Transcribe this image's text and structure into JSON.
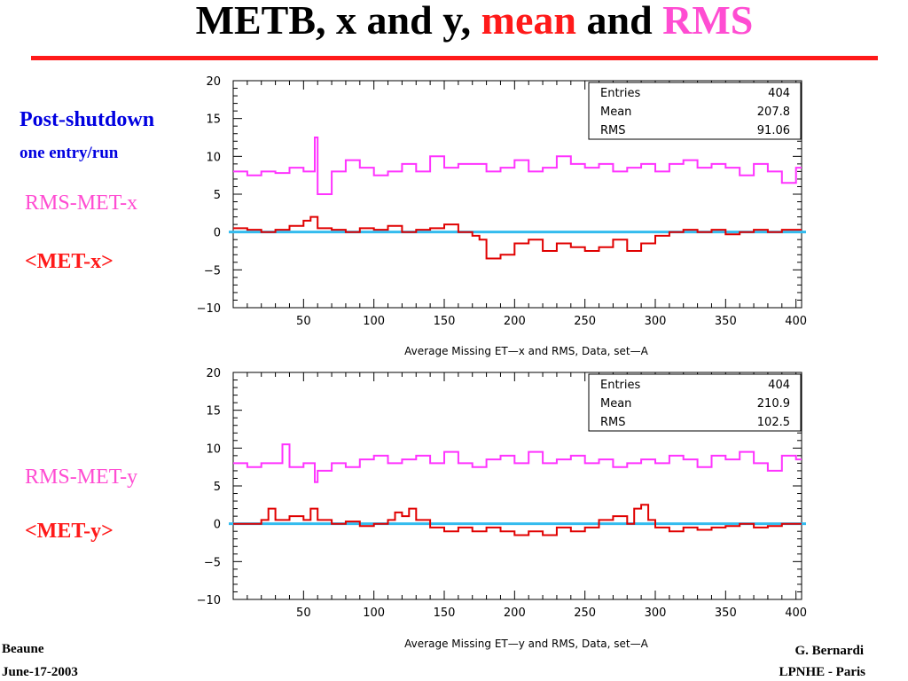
{
  "slide": {
    "title_part1": "METB, x and y,",
    "title_mean": "mean",
    "title_and": "and",
    "title_rms": "RMS",
    "post_shutdown": "Post-shutdown",
    "entry_per_run": "one entry/run",
    "rms_x_label": "RMS-MET-x",
    "mean_x_label": "<MET-x>",
    "rms_y_label": "RMS-MET-y",
    "mean_y_label": "<MET-y>",
    "footer_left_1": "Beaune",
    "footer_left_2": "June-17-2003",
    "footer_right_1": "G. Bernardi",
    "footer_right_2": "LPNHE - Paris"
  },
  "colors": {
    "title_red": "#ff1a1a",
    "title_pink": "#ff4dd2",
    "label_blue": "#0000e0",
    "rms_series": "#ff33ff",
    "mean_series": "#e00000",
    "zero_line": "#33bbee"
  },
  "chart_data": [
    {
      "type": "line",
      "xlabel": "Average Missing ET—x and RMS,  Data, set—A",
      "xlim": [
        0,
        404
      ],
      "ylim": [
        -10,
        20
      ],
      "xticks": [
        50,
        100,
        150,
        200,
        250,
        300,
        350,
        400
      ],
      "yticks": [
        -10,
        -5,
        0,
        5,
        10,
        15,
        20
      ],
      "xtick_labels": [
        "50",
        "100",
        "150",
        "200",
        "250",
        "300",
        "350",
        "400"
      ],
      "ytick_labels": [
        "−10",
        "−5",
        "0",
        "5",
        "10",
        "15",
        "20"
      ],
      "stats": [
        {
          "label": "Entries",
          "value": "404"
        },
        {
          "label": "Mean",
          "value": "207.8"
        },
        {
          "label": "RMS",
          "value": "91.06"
        }
      ],
      "series_rms": {
        "x": [
          0,
          10,
          20,
          30,
          40,
          50,
          58,
          60,
          70,
          80,
          90,
          100,
          110,
          120,
          130,
          140,
          150,
          160,
          170,
          180,
          190,
          200,
          210,
          220,
          230,
          240,
          250,
          260,
          270,
          280,
          290,
          300,
          310,
          320,
          330,
          340,
          350,
          360,
          370,
          380,
          390,
          400
        ],
        "y": [
          8.0,
          7.5,
          8.0,
          7.8,
          8.5,
          8.0,
          12.5,
          5.0,
          8.0,
          9.5,
          8.5,
          7.5,
          8.0,
          9.0,
          8.0,
          10.0,
          8.5,
          9.0,
          9.0,
          8.0,
          8.5,
          9.5,
          8.0,
          8.5,
          10.0,
          9.0,
          8.5,
          9.0,
          8.0,
          8.5,
          9.0,
          8.0,
          9.0,
          9.5,
          8.5,
          9.0,
          8.5,
          7.5,
          9.0,
          8.0,
          6.5,
          8.5
        ]
      },
      "series_mean": {
        "x": [
          0,
          10,
          20,
          30,
          40,
          50,
          55,
          60,
          70,
          80,
          90,
          100,
          110,
          120,
          130,
          140,
          150,
          160,
          170,
          175,
          180,
          190,
          200,
          210,
          220,
          230,
          240,
          250,
          260,
          270,
          280,
          290,
          300,
          310,
          320,
          330,
          340,
          350,
          360,
          370,
          380,
          390,
          400
        ],
        "y": [
          0.5,
          0.3,
          0.0,
          0.3,
          0.8,
          1.5,
          2.0,
          0.5,
          0.3,
          0.0,
          0.5,
          0.3,
          0.8,
          0.0,
          0.3,
          0.5,
          1.0,
          0.0,
          -0.5,
          -1.0,
          -3.5,
          -3.0,
          -1.5,
          -1.0,
          -2.5,
          -1.5,
          -2.0,
          -2.5,
          -2.0,
          -1.0,
          -2.5,
          -1.5,
          -0.5,
          0.0,
          0.3,
          0.0,
          0.3,
          -0.3,
          0.0,
          0.3,
          0.0,
          0.3,
          0.3
        ]
      },
      "zero_line": 0
    },
    {
      "type": "line",
      "xlabel": "Average Missing ET—y and RMS,  Data, set—A",
      "xlim": [
        0,
        404
      ],
      "ylim": [
        -10,
        20
      ],
      "xticks": [
        50,
        100,
        150,
        200,
        250,
        300,
        350,
        400
      ],
      "yticks": [
        -10,
        -5,
        0,
        5,
        10,
        15,
        20
      ],
      "xtick_labels": [
        "50",
        "100",
        "150",
        "200",
        "250",
        "300",
        "350",
        "400"
      ],
      "ytick_labels": [
        "−10",
        "−5",
        "0",
        "5",
        "10",
        "15",
        "20"
      ],
      "stats": [
        {
          "label": "Entries",
          "value": "404"
        },
        {
          "label": "Mean",
          "value": "210.9"
        },
        {
          "label": "RMS",
          "value": "102.5"
        }
      ],
      "series_rms": {
        "x": [
          0,
          10,
          20,
          30,
          35,
          40,
          50,
          58,
          60,
          70,
          80,
          90,
          100,
          110,
          120,
          130,
          140,
          150,
          160,
          170,
          180,
          190,
          200,
          210,
          220,
          230,
          240,
          250,
          260,
          270,
          280,
          290,
          300,
          310,
          320,
          330,
          340,
          350,
          360,
          370,
          380,
          390,
          400
        ],
        "y": [
          8.0,
          7.5,
          8.0,
          8.0,
          10.5,
          7.5,
          8.0,
          5.5,
          7.0,
          8.0,
          7.5,
          8.5,
          9.0,
          8.0,
          8.5,
          9.0,
          8.0,
          9.5,
          8.0,
          7.5,
          8.5,
          9.0,
          8.0,
          9.5,
          8.0,
          8.5,
          9.0,
          8.0,
          8.5,
          7.5,
          8.0,
          8.5,
          8.0,
          9.0,
          8.5,
          7.5,
          9.0,
          8.5,
          9.5,
          8.0,
          7.0,
          9.0,
          8.5
        ]
      },
      "series_mean": {
        "x": [
          0,
          10,
          20,
          25,
          30,
          40,
          50,
          55,
          60,
          70,
          80,
          90,
          100,
          110,
          115,
          120,
          125,
          130,
          140,
          150,
          160,
          170,
          180,
          190,
          200,
          210,
          220,
          230,
          240,
          250,
          260,
          270,
          280,
          285,
          290,
          295,
          300,
          310,
          320,
          330,
          340,
          350,
          360,
          370,
          380,
          390,
          400
        ],
        "y": [
          0.0,
          0.0,
          0.5,
          2.0,
          0.5,
          1.0,
          0.5,
          2.0,
          0.5,
          0.0,
          0.3,
          -0.3,
          0.0,
          0.5,
          1.5,
          1.0,
          2.0,
          0.5,
          -0.5,
          -1.0,
          -0.5,
          -1.0,
          -0.5,
          -1.0,
          -1.5,
          -1.0,
          -1.5,
          -0.5,
          -1.0,
          -0.5,
          0.5,
          1.0,
          0.0,
          2.0,
          2.5,
          0.5,
          -0.5,
          -1.0,
          -0.5,
          -0.8,
          -0.5,
          -0.3,
          0.0,
          -0.5,
          -0.3,
          0.0,
          0.0
        ]
      },
      "zero_line": 0
    }
  ]
}
